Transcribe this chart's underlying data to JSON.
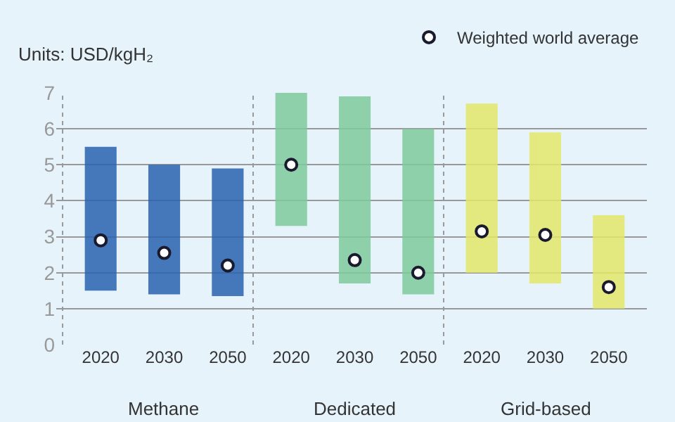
{
  "chart_data": {
    "type": "bar",
    "ylabel": "Units: USD/kgH₂",
    "categories": [
      "2020",
      "2030",
      "2050",
      "2020",
      "2030",
      "2050",
      "2020",
      "2030",
      "2050"
    ],
    "series": [
      {
        "base": [
          1.5,
          1.4,
          1.35,
          3.3,
          1.7,
          1.4,
          2.0,
          1.7,
          1.0
        ],
        "colors": [
          "#2a62b0",
          "#2a62b0",
          "#2a62b0",
          "#7fcb9c",
          "#7fcb9c",
          "#7fcb9c",
          "#e3e86a",
          "#e3e86a",
          "#e3e86a"
        ],
        "values": [
          4.0,
          3.6,
          3.55,
          3.7,
          5.2,
          4.6,
          4.7,
          4.2,
          2.6
        ]
      },
      {
        "type": "scatter",
        "name": "Weighted world average",
        "color": "#1a1a2e",
        "values": [
          2.9,
          2.55,
          2.2,
          5.0,
          2.35,
          2.0,
          3.15,
          3.05,
          1.6
        ]
      }
    ],
    "ylim": [
      0,
      7
    ],
    "yticks": [
      0,
      1,
      2,
      3,
      4,
      5,
      6,
      7
    ],
    "grid": "y",
    "legend": "top right",
    "marker": "circle",
    "annotations": [
      "Methane",
      "Dedicated",
      "Grid-based"
    ]
  }
}
